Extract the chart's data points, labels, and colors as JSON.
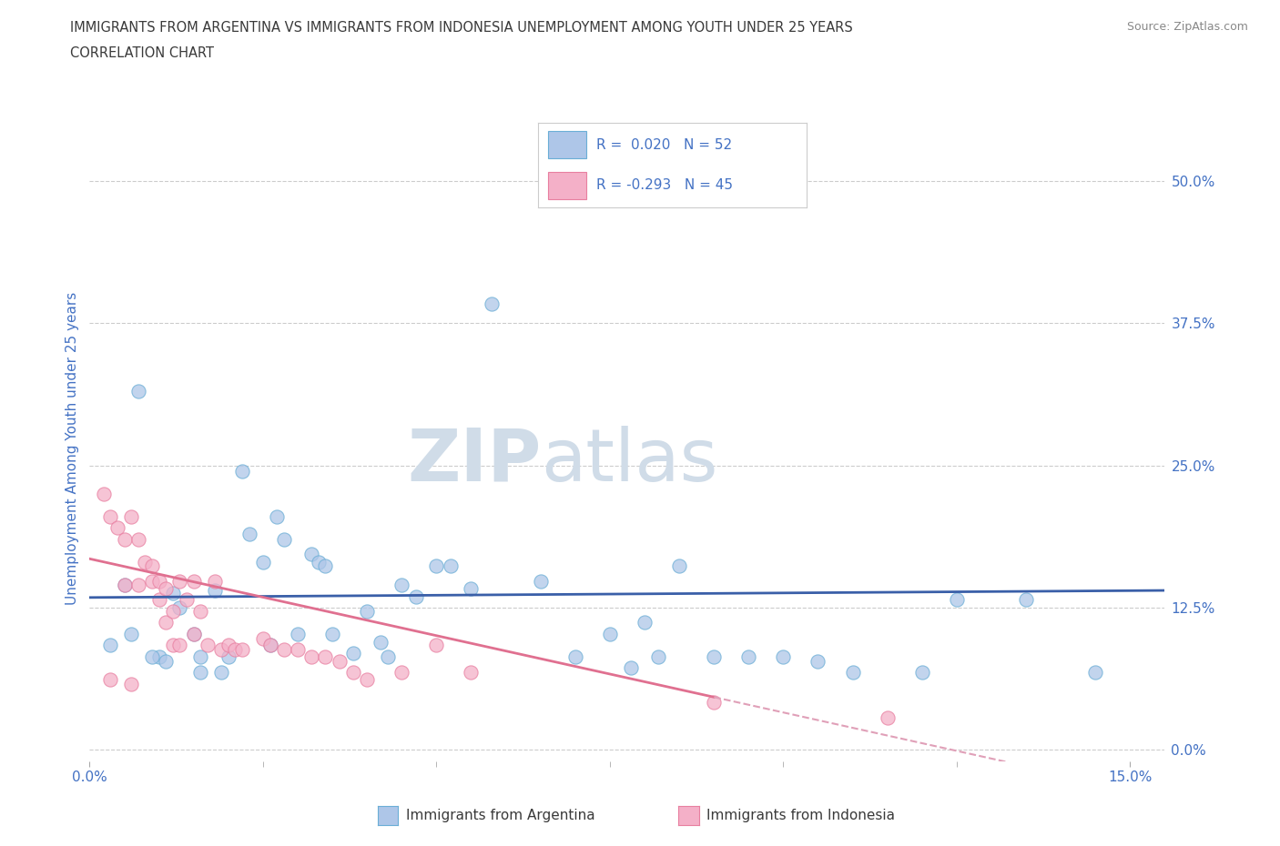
{
  "title_line1": "IMMIGRANTS FROM ARGENTINA VS IMMIGRANTS FROM INDONESIA UNEMPLOYMENT AMONG YOUTH UNDER 25 YEARS",
  "title_line2": "CORRELATION CHART",
  "source_text": "Source: ZipAtlas.com",
  "ylabel": "Unemployment Among Youth under 25 years",
  "xlim": [
    0.0,
    0.155
  ],
  "ylim": [
    -0.01,
    0.54
  ],
  "yticks": [
    0.0,
    0.125,
    0.25,
    0.375,
    0.5
  ],
  "ytick_labels": [
    "0.0%",
    "12.5%",
    "25.0%",
    "37.5%",
    "50.0%"
  ],
  "argentina_color": "#aec6e8",
  "argentina_edge": "#6aaed6",
  "indonesia_color": "#f4b0c8",
  "indonesia_edge": "#e87fa0",
  "trend_argentina_color": "#3a5fa8",
  "trend_indonesia_color": "#e07090",
  "trend_indonesia_dash_color": "#e0a0b8",
  "r_argentina": 0.02,
  "n_argentina": 52,
  "r_indonesia": -0.293,
  "n_indonesia": 45,
  "argentina_scatter": [
    [
      0.005,
      0.145
    ],
    [
      0.007,
      0.315
    ],
    [
      0.01,
      0.082
    ],
    [
      0.012,
      0.138
    ],
    [
      0.013,
      0.125
    ],
    [
      0.015,
      0.102
    ],
    [
      0.016,
      0.082
    ],
    [
      0.018,
      0.14
    ],
    [
      0.02,
      0.082
    ],
    [
      0.022,
      0.245
    ],
    [
      0.023,
      0.19
    ],
    [
      0.025,
      0.165
    ],
    [
      0.027,
      0.205
    ],
    [
      0.028,
      0.185
    ],
    [
      0.03,
      0.102
    ],
    [
      0.032,
      0.172
    ],
    [
      0.033,
      0.165
    ],
    [
      0.034,
      0.162
    ],
    [
      0.035,
      0.102
    ],
    [
      0.038,
      0.085
    ],
    [
      0.04,
      0.122
    ],
    [
      0.042,
      0.095
    ],
    [
      0.045,
      0.145
    ],
    [
      0.047,
      0.135
    ],
    [
      0.05,
      0.162
    ],
    [
      0.052,
      0.162
    ],
    [
      0.055,
      0.142
    ],
    [
      0.058,
      0.392
    ],
    [
      0.065,
      0.148
    ],
    [
      0.07,
      0.082
    ],
    [
      0.075,
      0.102
    ],
    [
      0.078,
      0.072
    ],
    [
      0.08,
      0.112
    ],
    [
      0.082,
      0.082
    ],
    [
      0.085,
      0.162
    ],
    [
      0.09,
      0.082
    ],
    [
      0.095,
      0.082
    ],
    [
      0.1,
      0.082
    ],
    [
      0.105,
      0.078
    ],
    [
      0.11,
      0.068
    ],
    [
      0.12,
      0.068
    ],
    [
      0.125,
      0.132
    ],
    [
      0.003,
      0.092
    ],
    [
      0.006,
      0.102
    ],
    [
      0.009,
      0.082
    ],
    [
      0.011,
      0.078
    ],
    [
      0.016,
      0.068
    ],
    [
      0.019,
      0.068
    ],
    [
      0.026,
      0.092
    ],
    [
      0.043,
      0.082
    ],
    [
      0.135,
      0.132
    ],
    [
      0.145,
      0.068
    ]
  ],
  "indonesia_scatter": [
    [
      0.002,
      0.225
    ],
    [
      0.003,
      0.205
    ],
    [
      0.004,
      0.195
    ],
    [
      0.005,
      0.185
    ],
    [
      0.005,
      0.145
    ],
    [
      0.006,
      0.205
    ],
    [
      0.007,
      0.185
    ],
    [
      0.007,
      0.145
    ],
    [
      0.008,
      0.165
    ],
    [
      0.009,
      0.162
    ],
    [
      0.009,
      0.148
    ],
    [
      0.01,
      0.148
    ],
    [
      0.01,
      0.132
    ],
    [
      0.011,
      0.142
    ],
    [
      0.011,
      0.112
    ],
    [
      0.012,
      0.122
    ],
    [
      0.012,
      0.092
    ],
    [
      0.013,
      0.148
    ],
    [
      0.013,
      0.092
    ],
    [
      0.014,
      0.132
    ],
    [
      0.015,
      0.148
    ],
    [
      0.015,
      0.102
    ],
    [
      0.016,
      0.122
    ],
    [
      0.017,
      0.092
    ],
    [
      0.018,
      0.148
    ],
    [
      0.019,
      0.088
    ],
    [
      0.02,
      0.092
    ],
    [
      0.021,
      0.088
    ],
    [
      0.022,
      0.088
    ],
    [
      0.025,
      0.098
    ],
    [
      0.026,
      0.092
    ],
    [
      0.028,
      0.088
    ],
    [
      0.03,
      0.088
    ],
    [
      0.032,
      0.082
    ],
    [
      0.034,
      0.082
    ],
    [
      0.036,
      0.078
    ],
    [
      0.038,
      0.068
    ],
    [
      0.04,
      0.062
    ],
    [
      0.045,
      0.068
    ],
    [
      0.05,
      0.092
    ],
    [
      0.055,
      0.068
    ],
    [
      0.003,
      0.062
    ],
    [
      0.006,
      0.058
    ],
    [
      0.09,
      0.042
    ],
    [
      0.115,
      0.028
    ]
  ],
  "watermark_zip": "ZIP",
  "watermark_atlas": "atlas",
  "watermark_color": "#d0dce8",
  "grid_color": "#cccccc",
  "title_color": "#3a3a3a",
  "axis_label_color": "#4472c4",
  "tick_label_color": "#4472c4",
  "legend_color": "#4472c4",
  "source_color": "#888888"
}
